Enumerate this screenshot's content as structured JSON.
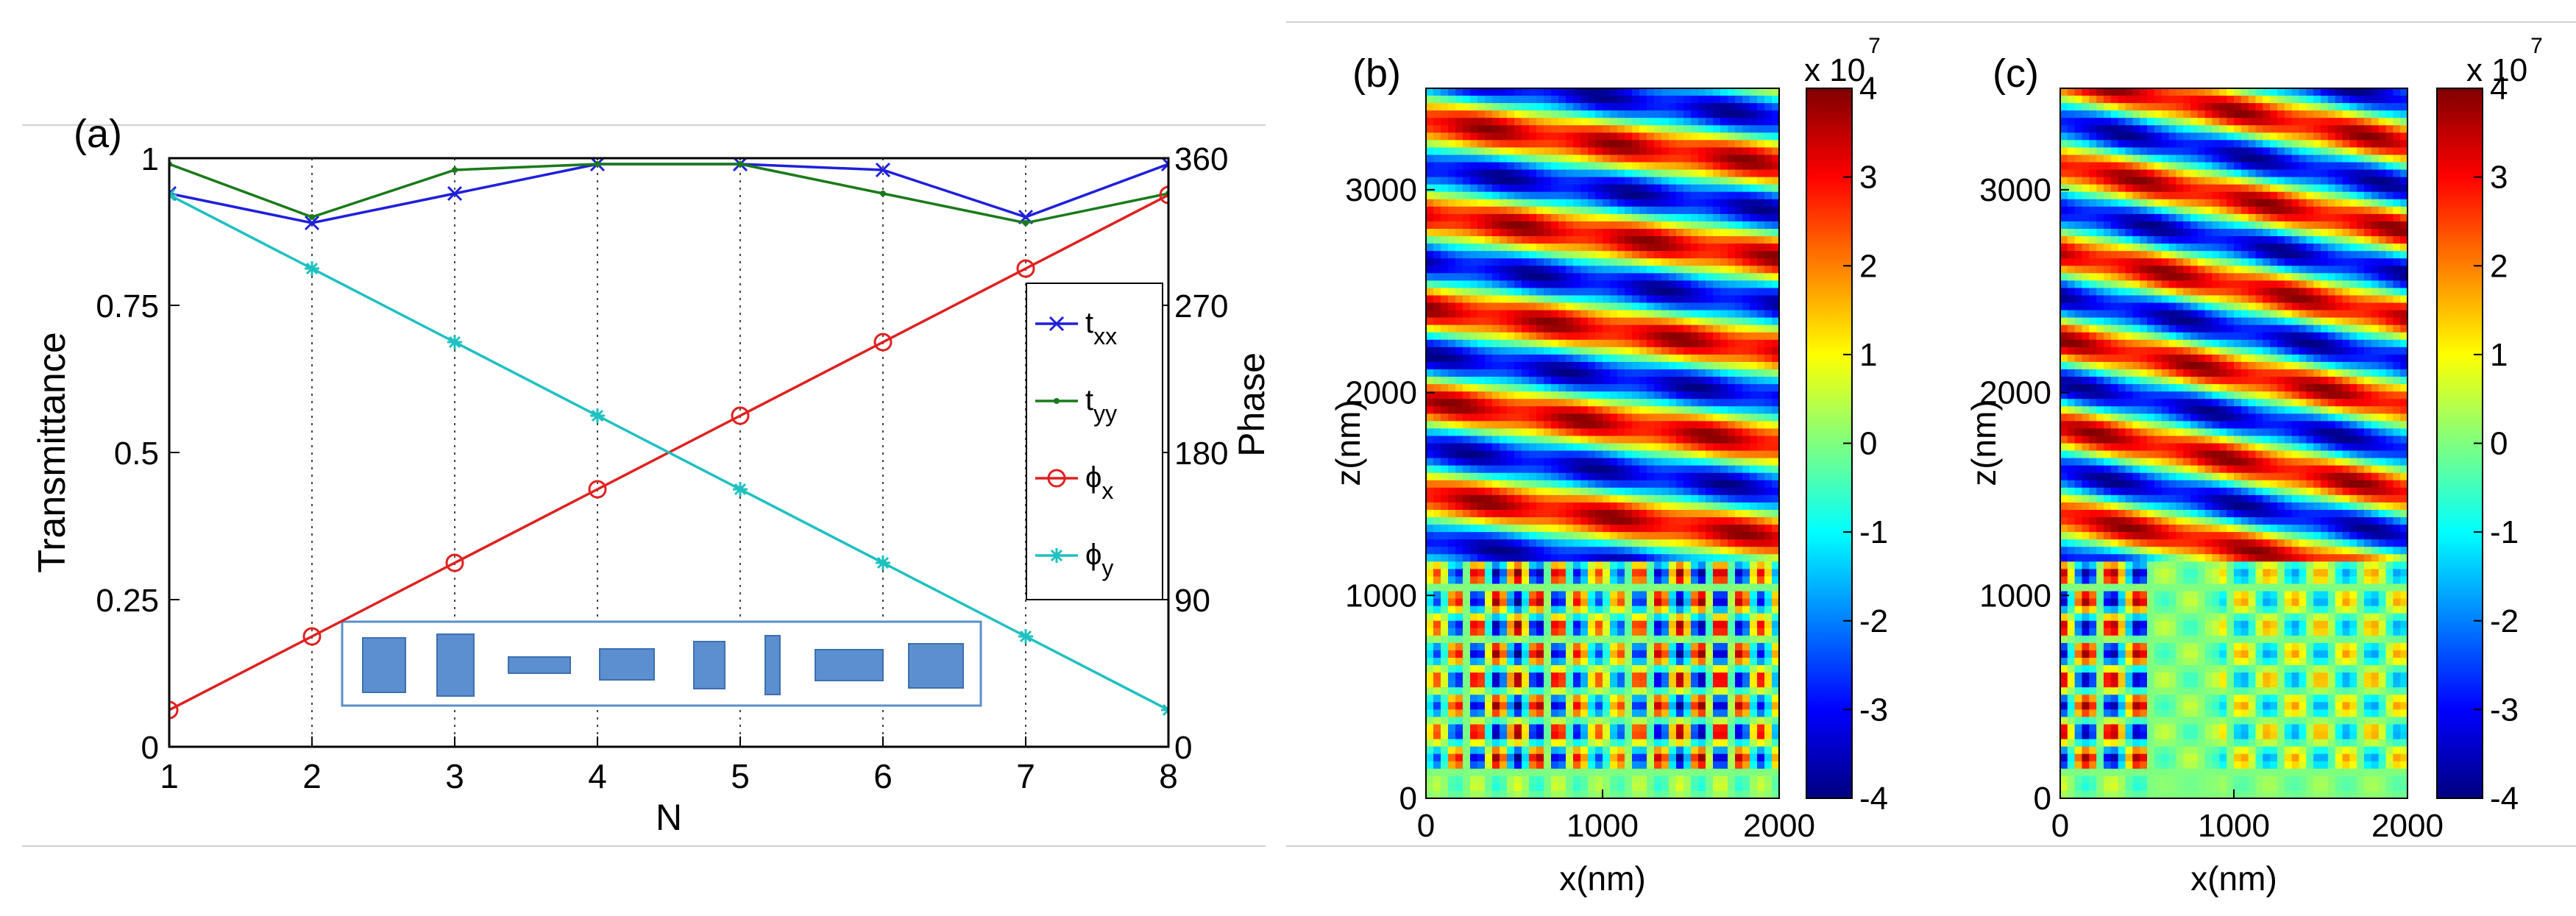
{
  "panels": {
    "a": {
      "label": "(a)"
    },
    "b": {
      "label": "(b)"
    },
    "c": {
      "label": "(c)"
    }
  },
  "chart_data": [
    {
      "id": "a",
      "type": "line",
      "title": "",
      "xlabel": "N",
      "ylabel": "Transmittance",
      "y2label": "Phase",
      "x": [
        1,
        2,
        3,
        4,
        5,
        6,
        7,
        8
      ],
      "xlim": [
        1,
        8
      ],
      "ylim": [
        0,
        1
      ],
      "y2lim": [
        0,
        360
      ],
      "xticks": [
        "1",
        "2",
        "3",
        "4",
        "5",
        "6",
        "7",
        "8"
      ],
      "yticks": [
        "0",
        "0.25",
        "0.5",
        "0.75",
        "1"
      ],
      "y2ticks": [
        "0",
        "90",
        "180",
        "270",
        "360"
      ],
      "grid": "vertical dotted",
      "legend_position": "right",
      "series": [
        {
          "name": "t_xx",
          "legend_main": "t",
          "legend_sub": "xx",
          "axis": "left",
          "color": "#1f1fdc",
          "marker": "x",
          "values": [
            0.94,
            0.89,
            0.94,
            0.99,
            0.99,
            0.98,
            0.9,
            0.99
          ]
        },
        {
          "name": "t_yy",
          "legend_main": "t",
          "legend_sub": "yy",
          "axis": "left",
          "color": "#1a7a1a",
          "marker": "dot",
          "values": [
            0.99,
            0.9,
            0.98,
            0.99,
            0.99,
            0.94,
            0.89,
            0.94
          ]
        },
        {
          "name": "φ_x",
          "legend_main": "ϕ",
          "legend_sub": "x",
          "axis": "right",
          "color": "#e02020",
          "marker": "circle",
          "values": [
            22.5,
            67.5,
            112.5,
            157.5,
            202.5,
            247.5,
            292.5,
            337.5
          ]
        },
        {
          "name": "φ_y",
          "legend_main": "ϕ",
          "legend_sub": "y",
          "axis": "right",
          "color": "#1fc0c0",
          "marker": "star",
          "values": [
            337.5,
            292.5,
            247.5,
            202.5,
            157.5,
            112.5,
            67.5,
            22.5
          ]
        }
      ]
    },
    {
      "id": "b",
      "type": "heatmap",
      "xlabel": "x(nm)",
      "ylabel": "z(nm)",
      "xlim": [
        0,
        2000
      ],
      "ylim": [
        0,
        3500
      ],
      "xticks": [
        "0",
        "1000",
        "2000"
      ],
      "yticks": [
        "0",
        "1000",
        "2000",
        "3000"
      ],
      "colorbar": {
        "ticks": [
          "-4",
          "-3",
          "-2",
          "-1",
          "0",
          "1",
          "2",
          "3",
          "4"
        ],
        "range": [
          -4,
          4
        ],
        "exponent_base": "x 10",
        "exponent": "7"
      }
    },
    {
      "id": "c",
      "type": "heatmap",
      "xlabel": "x(nm)",
      "ylabel": "z(nm)",
      "xlim": [
        0,
        2000
      ],
      "ylim": [
        0,
        3500
      ],
      "xticks": [
        "0",
        "1000",
        "2000"
      ],
      "yticks": [
        "0",
        "1000",
        "2000",
        "3000"
      ],
      "colorbar": {
        "ticks": [
          "-4",
          "-3",
          "-2",
          "-1",
          "0",
          "1",
          "2",
          "3",
          "4"
        ],
        "range": [
          -4,
          4
        ],
        "exponent_base": "x 10",
        "exponent": "7"
      }
    }
  ]
}
